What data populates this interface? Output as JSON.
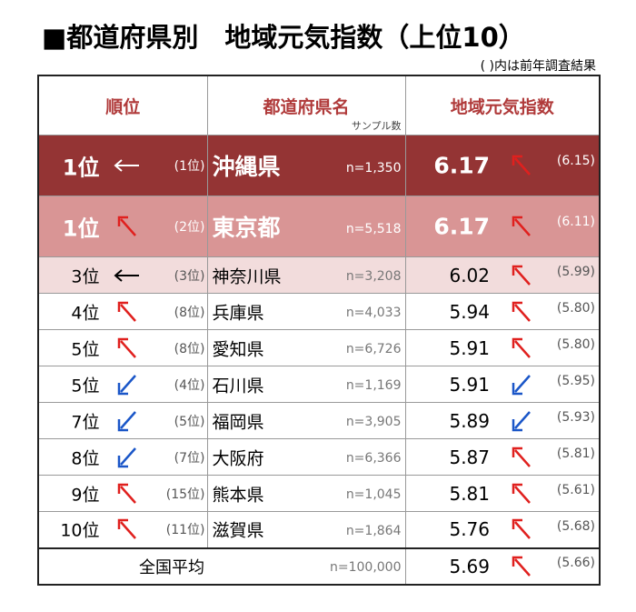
{
  "title": "■都道府県別　地域元気指数（上位10）",
  "note": "( )内は前年調査結果",
  "headers": {
    "rank": "順位",
    "prefecture": "都道府県名",
    "sample": "サンプル数",
    "index": "地域元気指数"
  },
  "colors": {
    "dark_row": "#943434",
    "mid_row": "#d99595",
    "light_row": "#f2dcdc",
    "header_text": "#b03a3a",
    "up_arrow": "#e0201e",
    "down_arrow": "#1a56c8"
  },
  "rows": [
    {
      "rank": "1位",
      "rank_change": "same",
      "prev_rank": "(1位)",
      "prefecture": "沖縄県",
      "n": "n=1,350",
      "index": "6.17",
      "index_change": "up",
      "prev_index": "(6.15)"
    },
    {
      "rank": "1位",
      "rank_change": "up",
      "prev_rank": "(2位)",
      "prefecture": "東京都",
      "n": "n=5,518",
      "index": "6.17",
      "index_change": "up",
      "prev_index": "(6.11)"
    },
    {
      "rank": "3位",
      "rank_change": "same",
      "prev_rank": "(3位)",
      "prefecture": "神奈川県",
      "n": "n=3,208",
      "index": "6.02",
      "index_change": "up",
      "prev_index": "(5.99)"
    },
    {
      "rank": "4位",
      "rank_change": "up",
      "prev_rank": "(8位)",
      "prefecture": "兵庫県",
      "n": "n=4,033",
      "index": "5.94",
      "index_change": "up",
      "prev_index": "(5.80)"
    },
    {
      "rank": "5位",
      "rank_change": "up",
      "prev_rank": "(8位)",
      "prefecture": "愛知県",
      "n": "n=6,726",
      "index": "5.91",
      "index_change": "up",
      "prev_index": "(5.80)"
    },
    {
      "rank": "5位",
      "rank_change": "down",
      "prev_rank": "(4位)",
      "prefecture": "石川県",
      "n": "n=1,169",
      "index": "5.91",
      "index_change": "down",
      "prev_index": "(5.95)"
    },
    {
      "rank": "7位",
      "rank_change": "down",
      "prev_rank": "(5位)",
      "prefecture": "福岡県",
      "n": "n=3,905",
      "index": "5.89",
      "index_change": "down",
      "prev_index": "(5.93)"
    },
    {
      "rank": "8位",
      "rank_change": "down",
      "prev_rank": "(7位)",
      "prefecture": "大阪府",
      "n": "n=6,366",
      "index": "5.87",
      "index_change": "up",
      "prev_index": "(5.81)"
    },
    {
      "rank": "9位",
      "rank_change": "up",
      "prev_rank": "(15位)",
      "prefecture": "熊本県",
      "n": "n=1,045",
      "index": "5.81",
      "index_change": "up",
      "prev_index": "(5.61)"
    },
    {
      "rank": "10位",
      "rank_change": "up",
      "prev_rank": "(11位)",
      "prefecture": "滋賀県",
      "n": "n=1,864",
      "index": "5.76",
      "index_change": "up",
      "prev_index": "(5.68)"
    }
  ],
  "national": {
    "label": "全国平均",
    "n": "n=100,000",
    "index": "5.69",
    "index_change": "up",
    "prev_index": "(5.66)"
  }
}
